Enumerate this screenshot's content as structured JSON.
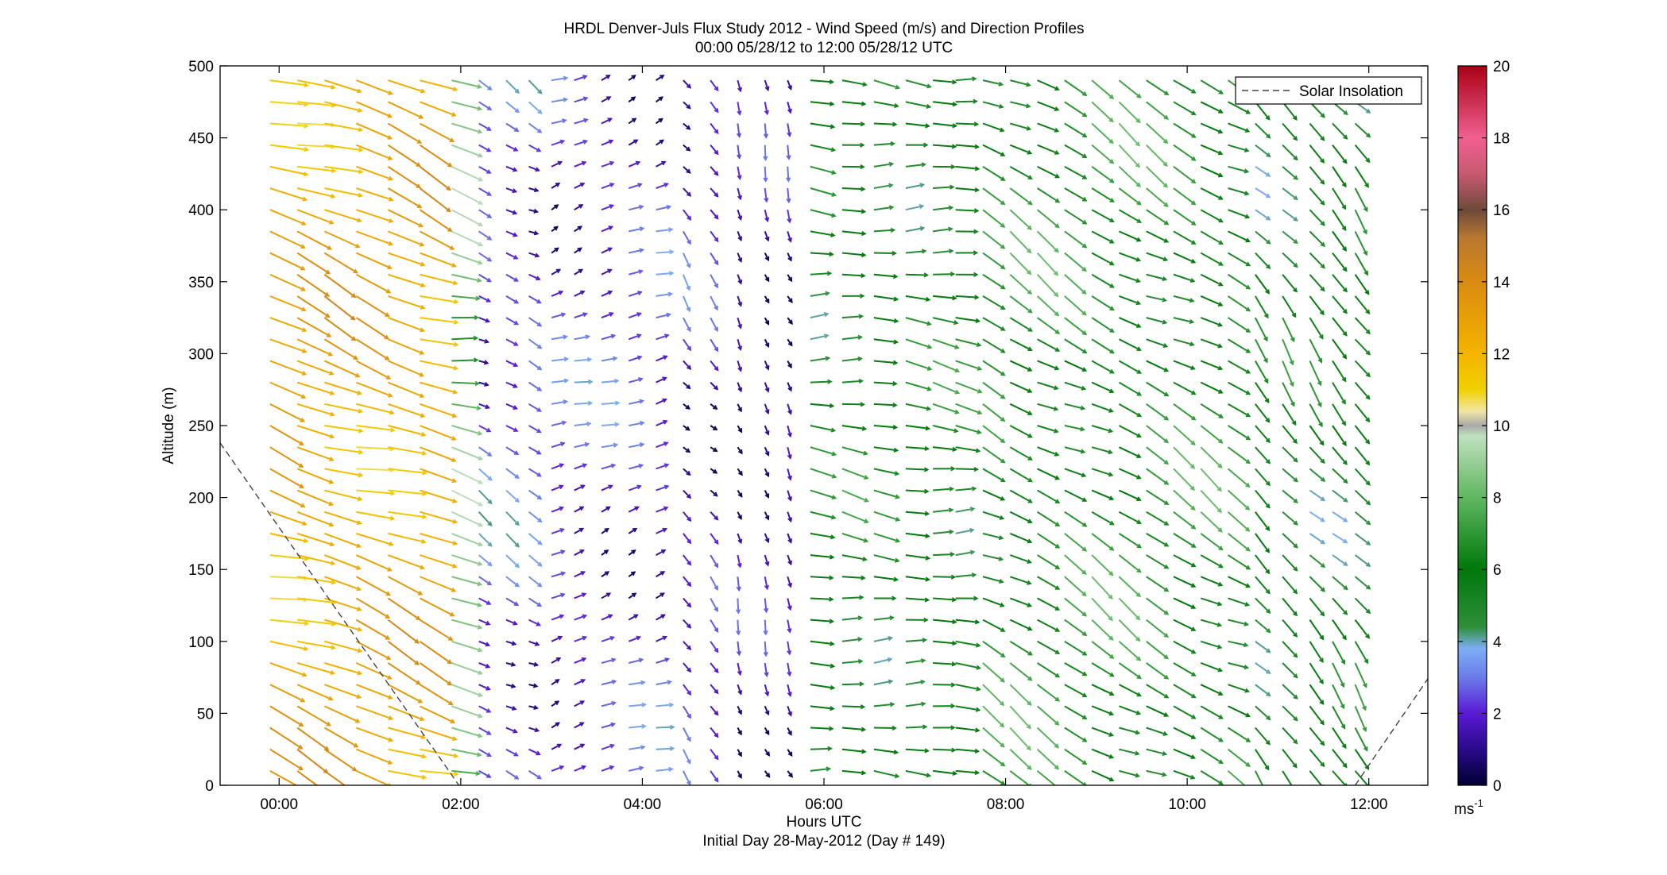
{
  "chart_data": {
    "type": "quiver",
    "title": "HRDL Denver-Juls Flux Study 2012 - Wind Speed (m/s) and Direction Profiles",
    "subtitle": "00:00 05/28/12 to 12:00 05/28/12  UTC",
    "xlabel": "Hours UTC",
    "xlabel2": "Initial Day 28-May-2012 (Day # 149)",
    "ylabel": "Altitude (m)",
    "xlim_hours": [
      -0.65,
      12.65
    ],
    "ylim": [
      0,
      500
    ],
    "x_ticks": [
      {
        "value": 0,
        "label": "00:00"
      },
      {
        "value": 2,
        "label": "02:00"
      },
      {
        "value": 4,
        "label": "04:00"
      },
      {
        "value": 6,
        "label": "06:00"
      },
      {
        "value": 8,
        "label": "08:00"
      },
      {
        "value": 10,
        "label": "10:00"
      },
      {
        "value": 12,
        "label": "12:00"
      }
    ],
    "y_ticks": [
      0,
      50,
      100,
      150,
      200,
      250,
      300,
      350,
      400,
      450,
      500
    ],
    "legend": {
      "position": "top-right",
      "entries": [
        "Solar Insolation"
      ]
    },
    "solar_insolation": [
      {
        "segment": "decreasing",
        "points": [
          [
            -0.65,
            238
          ],
          [
            1.98,
            0
          ]
        ]
      },
      {
        "segment": "increasing",
        "points": [
          [
            11.85,
            0
          ],
          [
            12.65,
            74
          ]
        ]
      }
    ],
    "colorbar": {
      "label": "ms",
      "label_exponent": "-1",
      "range": [
        0,
        20
      ],
      "ticks": [
        0,
        2,
        4,
        6,
        8,
        10,
        12,
        14,
        16,
        18,
        20
      ],
      "stops": [
        {
          "v": 0,
          "c": "#000033"
        },
        {
          "v": 1,
          "c": "#2a0a8a"
        },
        {
          "v": 2,
          "c": "#5a1ad6"
        },
        {
          "v": 3,
          "c": "#6a7ce8"
        },
        {
          "v": 3.8,
          "c": "#7eaef5"
        },
        {
          "v": 4.4,
          "c": "#2f8f3a"
        },
        {
          "v": 6,
          "c": "#00780a"
        },
        {
          "v": 8,
          "c": "#5fb760"
        },
        {
          "v": 9.7,
          "c": "#bfe0bf"
        },
        {
          "v": 10,
          "c": "#a8a8a8"
        },
        {
          "v": 10.4,
          "c": "#f2e6a6"
        },
        {
          "v": 11,
          "c": "#f0d000"
        },
        {
          "v": 12,
          "c": "#f4b400"
        },
        {
          "v": 14,
          "c": "#d98b10"
        },
        {
          "v": 15.2,
          "c": "#b87830"
        },
        {
          "v": 16,
          "c": "#6e4a3a"
        },
        {
          "v": 17,
          "c": "#c85a70"
        },
        {
          "v": 18,
          "c": "#f06090"
        },
        {
          "v": 20,
          "c": "#aa0015"
        }
      ]
    },
    "profile_times_hours": [
      -0.1,
      0.2,
      0.5,
      0.85,
      1.2,
      1.55,
      1.9,
      2.2,
      2.5,
      2.75,
      3.0,
      3.25,
      3.55,
      3.85,
      4.15,
      4.45,
      4.75,
      5.05,
      5.35,
      5.6,
      5.85,
      6.2,
      6.55,
      6.9,
      7.2,
      7.45,
      7.75,
      8.05,
      8.35,
      8.65,
      8.95,
      9.25,
      9.55,
      9.85,
      10.15,
      10.45,
      10.75,
      11.05,
      11.35,
      11.6,
      11.85
    ],
    "profile_gates_m": [
      10,
      25,
      40,
      55,
      70,
      85,
      100,
      115,
      130,
      145,
      160,
      175,
      190,
      205,
      220,
      235,
      250,
      265,
      280,
      295,
      310,
      325,
      340,
      355,
      370,
      385,
      400,
      415,
      430,
      445,
      460,
      475,
      490
    ],
    "wind_periods": [
      {
        "from": -0.2,
        "to": 1.6,
        "speed_m_s": 12.5,
        "direction_deg": 290,
        "note": "strong WNW flow, yellow/orange"
      },
      {
        "from": 1.6,
        "to": 2.2,
        "speed_m_s": 8.5,
        "direction_deg": 285
      },
      {
        "from": 2.2,
        "to": 3.0,
        "speed_m_s": 2.5,
        "direction_deg": 300
      },
      {
        "from": 3.0,
        "to": 4.2,
        "speed_m_s": 2.2,
        "direction_deg": 250
      },
      {
        "from": 4.2,
        "to": 5.0,
        "speed_m_s": 1.8,
        "direction_deg": 320
      },
      {
        "from": 5.0,
        "to": 5.7,
        "speed_m_s": 1.2,
        "direction_deg": 340
      },
      {
        "from": 5.7,
        "to": 7.5,
        "speed_m_s": 5.8,
        "direction_deg": 275
      },
      {
        "from": 7.5,
        "to": 10.5,
        "speed_m_s": 6.5,
        "direction_deg": 300
      },
      {
        "from": 10.5,
        "to": 12.0,
        "speed_m_s": 5.5,
        "direction_deg": 320
      }
    ]
  },
  "colors": {
    "axis": "#000000",
    "background": "#ffffff",
    "insolation_line": "#444444"
  }
}
